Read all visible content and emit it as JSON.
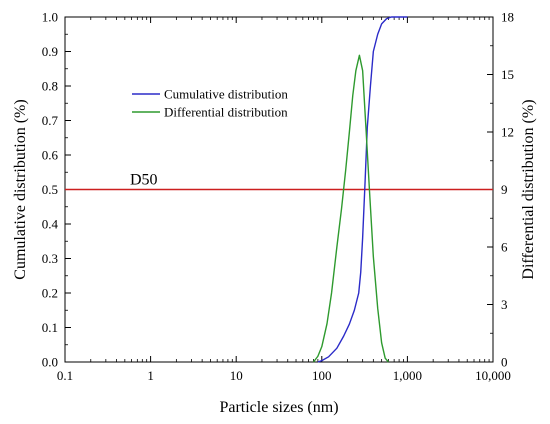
{
  "chart_data": {
    "type": "line",
    "xlabel": "Particle sizes (nm)",
    "ylabel": "Cumulative distribution (%)",
    "y2label": "Differential distribution (%)",
    "xscale": "log",
    "xlim": [
      0.1,
      10000
    ],
    "ylim": [
      0.0,
      1.0
    ],
    "y2lim": [
      0,
      18
    ],
    "x_ticks": [
      {
        "value": 0.1,
        "label": "0.1"
      },
      {
        "value": 1,
        "label": "1"
      },
      {
        "value": 10,
        "label": "10"
      },
      {
        "value": 100,
        "label": "100"
      },
      {
        "value": 1000,
        "label": "1,000"
      },
      {
        "value": 10000,
        "label": "10,000"
      }
    ],
    "y_ticks": [
      {
        "value": 0.0,
        "label": "0.0"
      },
      {
        "value": 0.1,
        "label": "0.1"
      },
      {
        "value": 0.2,
        "label": "0.2"
      },
      {
        "value": 0.3,
        "label": "0.3"
      },
      {
        "value": 0.4,
        "label": "0.4"
      },
      {
        "value": 0.5,
        "label": "0.5"
      },
      {
        "value": 0.6,
        "label": "0.6"
      },
      {
        "value": 0.7,
        "label": "0.7"
      },
      {
        "value": 0.8,
        "label": "0.8"
      },
      {
        "value": 0.9,
        "label": "0.9"
      },
      {
        "value": 1.0,
        "label": "1.0"
      }
    ],
    "y2_ticks": [
      {
        "value": 0,
        "label": "0"
      },
      {
        "value": 3,
        "label": "3"
      },
      {
        "value": 6,
        "label": "6"
      },
      {
        "value": 9,
        "label": "9"
      },
      {
        "value": 12,
        "label": "12"
      },
      {
        "value": 15,
        "label": "15"
      },
      {
        "value": 18,
        "label": "18"
      }
    ],
    "legend_position": "upper-left",
    "series": [
      {
        "name": "Cumulative distribution",
        "axis": "left",
        "color": "#2b2bc8",
        "points": [
          [
            90,
            0.0
          ],
          [
            100,
            0.004
          ],
          [
            120,
            0.015
          ],
          [
            150,
            0.04
          ],
          [
            180,
            0.075
          ],
          [
            210,
            0.11
          ],
          [
            240,
            0.15
          ],
          [
            270,
            0.2
          ],
          [
            285,
            0.26
          ],
          [
            300,
            0.36
          ],
          [
            320,
            0.52
          ],
          [
            340,
            0.68
          ],
          [
            370,
            0.8
          ],
          [
            400,
            0.9
          ],
          [
            450,
            0.95
          ],
          [
            500,
            0.98
          ],
          [
            570,
            0.995
          ],
          [
            650,
            1.0
          ],
          [
            1000,
            1.0
          ]
        ]
      },
      {
        "name": "Differential distribution",
        "axis": "right",
        "color": "#2e9a2e",
        "points": [
          [
            80,
            0.0
          ],
          [
            90,
            0.3
          ],
          [
            100,
            0.8
          ],
          [
            115,
            2.0
          ],
          [
            130,
            3.6
          ],
          [
            150,
            6.0
          ],
          [
            170,
            8.0
          ],
          [
            190,
            10.0
          ],
          [
            210,
            12.0
          ],
          [
            230,
            13.9
          ],
          [
            250,
            15.2
          ],
          [
            275,
            16.0
          ],
          [
            300,
            15.2
          ],
          [
            330,
            12.0
          ],
          [
            360,
            9.0
          ],
          [
            400,
            5.5
          ],
          [
            450,
            2.8
          ],
          [
            500,
            1.0
          ],
          [
            550,
            0.2
          ],
          [
            600,
            0.0
          ]
        ]
      }
    ],
    "reference_lines": [
      {
        "label": "D50",
        "axis": "left",
        "y": 0.5,
        "color": "#cc1f1f"
      }
    ]
  }
}
